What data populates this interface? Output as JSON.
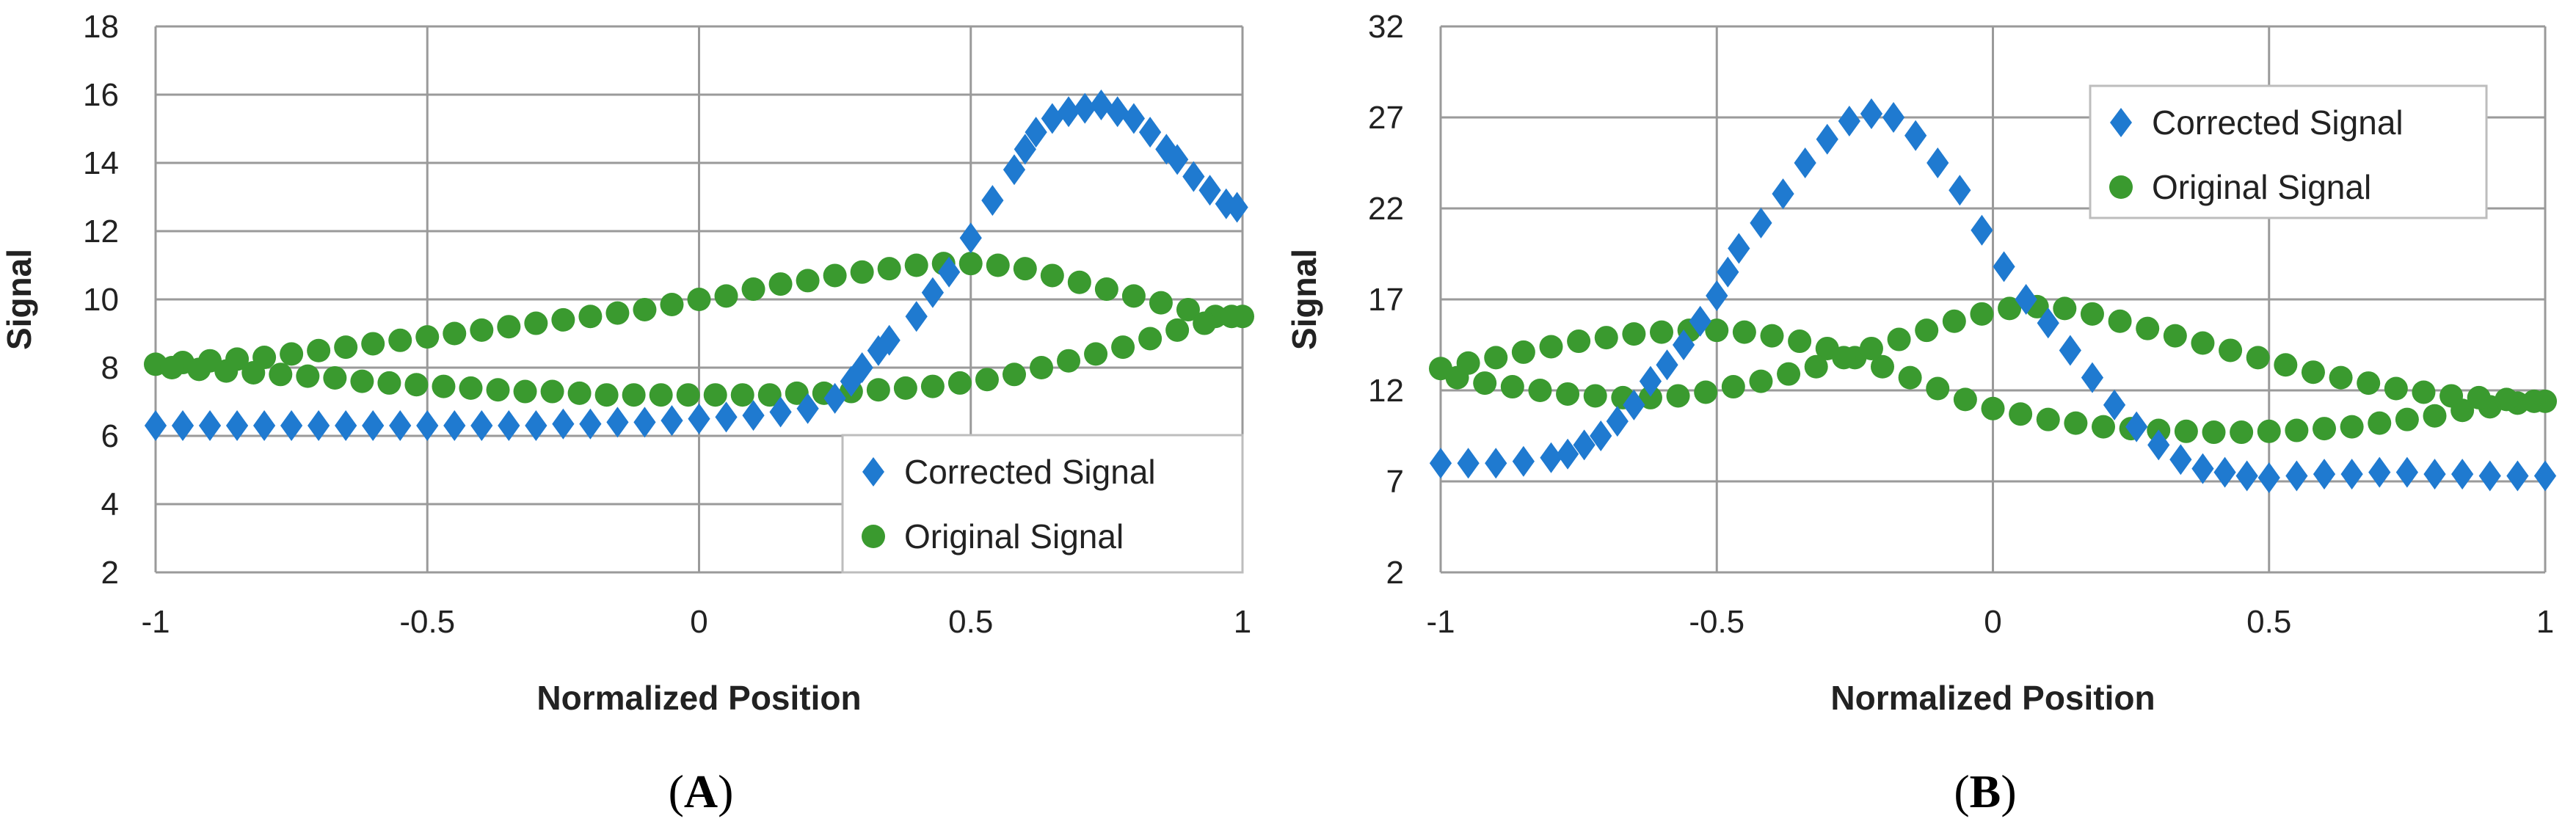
{
  "colors": {
    "corrected": "#1f7ad0",
    "original": "#3a9a2f",
    "grid": "#9a9a9a",
    "axis": "#7f7f7f"
  },
  "chart_data": [
    {
      "type": "scatter",
      "panel_label": "A",
      "xlabel": "Normalized Position",
      "ylabel": "Signal",
      "xlim": [
        -1,
        1
      ],
      "ylim": [
        2,
        18
      ],
      "xticks": [
        -1,
        -0.5,
        0,
        0.5,
        1
      ],
      "yticks": [
        2,
        4,
        6,
        8,
        10,
        12,
        14,
        16,
        18
      ],
      "grid": true,
      "legend_position": "bottom-right",
      "series": [
        {
          "name": "Corrected Signal",
          "marker": "diamond",
          "points": [
            [
              -1,
              6.3
            ],
            [
              -0.95,
              6.3
            ],
            [
              -0.9,
              6.3
            ],
            [
              -0.85,
              6.3
            ],
            [
              -0.8,
              6.3
            ],
            [
              -0.75,
              6.3
            ],
            [
              -0.7,
              6.3
            ],
            [
              -0.65,
              6.3
            ],
            [
              -0.6,
              6.3
            ],
            [
              -0.55,
              6.3
            ],
            [
              -0.5,
              6.3
            ],
            [
              -0.45,
              6.3
            ],
            [
              -0.4,
              6.3
            ],
            [
              -0.35,
              6.3
            ],
            [
              -0.3,
              6.3
            ],
            [
              -0.25,
              6.35
            ],
            [
              -0.2,
              6.35
            ],
            [
              -0.15,
              6.4
            ],
            [
              -0.1,
              6.4
            ],
            [
              -0.05,
              6.45
            ],
            [
              0,
              6.5
            ],
            [
              0.05,
              6.55
            ],
            [
              0.1,
              6.6
            ],
            [
              0.15,
              6.7
            ],
            [
              0.2,
              6.8
            ],
            [
              0.25,
              7.1
            ],
            [
              0.28,
              7.6
            ],
            [
              0.3,
              8.0
            ],
            [
              0.33,
              8.5
            ],
            [
              0.35,
              8.8
            ],
            [
              0.4,
              9.5
            ],
            [
              0.43,
              10.2
            ],
            [
              0.46,
              10.8
            ],
            [
              0.5,
              11.8
            ],
            [
              0.54,
              12.9
            ],
            [
              0.58,
              13.8
            ],
            [
              0.6,
              14.4
            ],
            [
              0.62,
              14.9
            ],
            [
              0.65,
              15.3
            ],
            [
              0.68,
              15.5
            ],
            [
              0.71,
              15.6
            ],
            [
              0.74,
              15.7
            ],
            [
              0.77,
              15.5
            ],
            [
              0.8,
              15.3
            ],
            [
              0.83,
              14.9
            ],
            [
              0.86,
              14.4
            ],
            [
              0.88,
              14.1
            ],
            [
              0.91,
              13.6
            ],
            [
              0.94,
              13.2
            ],
            [
              0.97,
              12.8
            ],
            [
              0.99,
              12.7
            ]
          ]
        },
        {
          "name": "Original Signal",
          "marker": "circle",
          "points": [
            [
              -1,
              8.1
            ],
            [
              -0.95,
              8.15
            ],
            [
              -0.9,
              8.2
            ],
            [
              -0.85,
              8.25
            ],
            [
              -0.8,
              8.3
            ],
            [
              -0.75,
              8.4
            ],
            [
              -0.7,
              8.5
            ],
            [
              -0.65,
              8.6
            ],
            [
              -0.6,
              8.7
            ],
            [
              -0.55,
              8.8
            ],
            [
              -0.5,
              8.9
            ],
            [
              -0.45,
              9.0
            ],
            [
              -0.4,
              9.1
            ],
            [
              -0.35,
              9.2
            ],
            [
              -0.3,
              9.3
            ],
            [
              -0.25,
              9.4
            ],
            [
              -0.2,
              9.5
            ],
            [
              -0.15,
              9.6
            ],
            [
              -0.1,
              9.7
            ],
            [
              -0.05,
              9.85
            ],
            [
              0,
              10.0
            ],
            [
              0.05,
              10.1
            ],
            [
              0.1,
              10.3
            ],
            [
              0.15,
              10.45
            ],
            [
              0.2,
              10.55
            ],
            [
              0.25,
              10.7
            ],
            [
              0.3,
              10.8
            ],
            [
              0.35,
              10.9
            ],
            [
              0.4,
              11.0
            ],
            [
              0.45,
              11.05
            ],
            [
              0.5,
              11.05
            ],
            [
              0.55,
              11.0
            ],
            [
              0.6,
              10.9
            ],
            [
              0.65,
              10.7
            ],
            [
              0.7,
              10.5
            ],
            [
              0.75,
              10.3
            ],
            [
              0.8,
              10.1
            ],
            [
              0.85,
              9.9
            ],
            [
              0.9,
              9.7
            ],
            [
              0.95,
              9.5
            ],
            [
              1,
              9.5
            ],
            [
              -0.97,
              8.0
            ],
            [
              -0.92,
              7.95
            ],
            [
              -0.87,
              7.9
            ],
            [
              -0.82,
              7.85
            ],
            [
              -0.77,
              7.8
            ],
            [
              -0.72,
              7.75
            ],
            [
              -0.67,
              7.7
            ],
            [
              -0.62,
              7.6
            ],
            [
              -0.57,
              7.55
            ],
            [
              -0.52,
              7.5
            ],
            [
              -0.47,
              7.45
            ],
            [
              -0.42,
              7.4
            ],
            [
              -0.37,
              7.35
            ],
            [
              -0.32,
              7.3
            ],
            [
              -0.27,
              7.3
            ],
            [
              -0.22,
              7.25
            ],
            [
              -0.17,
              7.2
            ],
            [
              -0.12,
              7.2
            ],
            [
              -0.07,
              7.2
            ],
            [
              -0.02,
              7.2
            ],
            [
              0.03,
              7.2
            ],
            [
              0.08,
              7.2
            ],
            [
              0.13,
              7.2
            ],
            [
              0.18,
              7.25
            ],
            [
              0.23,
              7.25
            ],
            [
              0.28,
              7.3
            ],
            [
              0.33,
              7.35
            ],
            [
              0.38,
              7.4
            ],
            [
              0.43,
              7.45
            ],
            [
              0.48,
              7.55
            ],
            [
              0.53,
              7.65
            ],
            [
              0.58,
              7.8
            ],
            [
              0.63,
              8.0
            ],
            [
              0.68,
              8.2
            ],
            [
              0.73,
              8.4
            ],
            [
              0.78,
              8.6
            ],
            [
              0.83,
              8.85
            ],
            [
              0.88,
              9.1
            ],
            [
              0.93,
              9.3
            ],
            [
              0.98,
              9.5
            ]
          ]
        }
      ]
    },
    {
      "type": "scatter",
      "panel_label": "B",
      "xlabel": "Normalized Position",
      "ylabel": "Signal",
      "xlim": [
        -1,
        1
      ],
      "ylim": [
        2,
        32
      ],
      "xticks": [
        -1,
        -0.5,
        0,
        0.5,
        1
      ],
      "yticks": [
        2,
        7,
        12,
        17,
        22,
        27,
        32
      ],
      "grid": true,
      "legend_position": "top-right",
      "series": [
        {
          "name": "Corrected Signal",
          "marker": "diamond",
          "points": [
            [
              -1,
              8.0
            ],
            [
              -0.95,
              8.0
            ],
            [
              -0.9,
              8.0
            ],
            [
              -0.85,
              8.1
            ],
            [
              -0.8,
              8.3
            ],
            [
              -0.77,
              8.5
            ],
            [
              -0.74,
              9.0
            ],
            [
              -0.71,
              9.5
            ],
            [
              -0.68,
              10.3
            ],
            [
              -0.65,
              11.2
            ],
            [
              -0.62,
              12.5
            ],
            [
              -0.59,
              13.4
            ],
            [
              -0.56,
              14.5
            ],
            [
              -0.53,
              15.8
            ],
            [
              -0.5,
              17.2
            ],
            [
              -0.48,
              18.5
            ],
            [
              -0.46,
              19.8
            ],
            [
              -0.42,
              21.2
            ],
            [
              -0.38,
              22.8
            ],
            [
              -0.34,
              24.5
            ],
            [
              -0.3,
              25.8
            ],
            [
              -0.26,
              26.8
            ],
            [
              -0.22,
              27.2
            ],
            [
              -0.18,
              27.0
            ],
            [
              -0.14,
              26.0
            ],
            [
              -0.1,
              24.5
            ],
            [
              -0.06,
              23.0
            ],
            [
              -0.02,
              20.8
            ],
            [
              0.02,
              18.8
            ],
            [
              0.06,
              17.0
            ],
            [
              0.1,
              15.7
            ],
            [
              0.14,
              14.2
            ],
            [
              0.18,
              12.7
            ],
            [
              0.22,
              11.2
            ],
            [
              0.26,
              10.0
            ],
            [
              0.3,
              9.0
            ],
            [
              0.34,
              8.2
            ],
            [
              0.38,
              7.7
            ],
            [
              0.42,
              7.5
            ],
            [
              0.46,
              7.3
            ],
            [
              0.5,
              7.2
            ],
            [
              0.55,
              7.3
            ],
            [
              0.6,
              7.4
            ],
            [
              0.65,
              7.4
            ],
            [
              0.7,
              7.5
            ],
            [
              0.75,
              7.5
            ],
            [
              0.8,
              7.4
            ],
            [
              0.85,
              7.4
            ],
            [
              0.9,
              7.3
            ],
            [
              0.95,
              7.3
            ],
            [
              1,
              7.3
            ]
          ]
        },
        {
          "name": "Original Signal",
          "marker": "circle",
          "points": [
            [
              -1,
              13.2
            ],
            [
              -0.95,
              13.5
            ],
            [
              -0.9,
              13.8
            ],
            [
              -0.85,
              14.1
            ],
            [
              -0.8,
              14.4
            ],
            [
              -0.75,
              14.7
            ],
            [
              -0.7,
              14.9
            ],
            [
              -0.65,
              15.1
            ],
            [
              -0.6,
              15.2
            ],
            [
              -0.55,
              15.3
            ],
            [
              -0.5,
              15.3
            ],
            [
              -0.45,
              15.2
            ],
            [
              -0.4,
              15.0
            ],
            [
              -0.35,
              14.7
            ],
            [
              -0.3,
              14.3
            ],
            [
              -0.25,
              13.8
            ],
            [
              -0.2,
              13.3
            ],
            [
              -0.15,
              12.7
            ],
            [
              -0.1,
              12.1
            ],
            [
              -0.05,
              11.5
            ],
            [
              0,
              11.0
            ],
            [
              0.05,
              10.7
            ],
            [
              0.1,
              10.4
            ],
            [
              0.15,
              10.2
            ],
            [
              0.2,
              10.0
            ],
            [
              0.25,
              9.9
            ],
            [
              0.3,
              9.8
            ],
            [
              0.35,
              9.75
            ],
            [
              0.4,
              9.7
            ],
            [
              0.45,
              9.7
            ],
            [
              0.5,
              9.75
            ],
            [
              0.55,
              9.8
            ],
            [
              0.6,
              9.9
            ],
            [
              0.65,
              10.0
            ],
            [
              0.7,
              10.2
            ],
            [
              0.75,
              10.4
            ],
            [
              0.8,
              10.6
            ],
            [
              0.85,
              10.9
            ],
            [
              0.9,
              11.1
            ],
            [
              0.95,
              11.3
            ],
            [
              1,
              11.4
            ],
            [
              -0.97,
              12.7
            ],
            [
              -0.92,
              12.4
            ],
            [
              -0.87,
              12.2
            ],
            [
              -0.82,
              12.0
            ],
            [
              -0.77,
              11.8
            ],
            [
              -0.72,
              11.7
            ],
            [
              -0.67,
              11.6
            ],
            [
              -0.62,
              11.6
            ],
            [
              -0.57,
              11.7
            ],
            [
              -0.52,
              11.9
            ],
            [
              -0.47,
              12.2
            ],
            [
              -0.42,
              12.5
            ],
            [
              -0.37,
              12.9
            ],
            [
              -0.32,
              13.3
            ],
            [
              -0.27,
              13.8
            ],
            [
              -0.22,
              14.3
            ],
            [
              -0.17,
              14.8
            ],
            [
              -0.12,
              15.3
            ],
            [
              -0.07,
              15.8
            ],
            [
              -0.02,
              16.2
            ],
            [
              0.03,
              16.5
            ],
            [
              0.08,
              16.6
            ],
            [
              0.13,
              16.5
            ],
            [
              0.18,
              16.2
            ],
            [
              0.23,
              15.8
            ],
            [
              0.28,
              15.4
            ],
            [
              0.33,
              15.0
            ],
            [
              0.38,
              14.6
            ],
            [
              0.43,
              14.2
            ],
            [
              0.48,
              13.8
            ],
            [
              0.53,
              13.4
            ],
            [
              0.58,
              13.0
            ],
            [
              0.63,
              12.7
            ],
            [
              0.68,
              12.4
            ],
            [
              0.73,
              12.1
            ],
            [
              0.78,
              11.9
            ],
            [
              0.83,
              11.7
            ],
            [
              0.88,
              11.6
            ],
            [
              0.93,
              11.5
            ],
            [
              0.98,
              11.4
            ]
          ]
        }
      ]
    }
  ]
}
